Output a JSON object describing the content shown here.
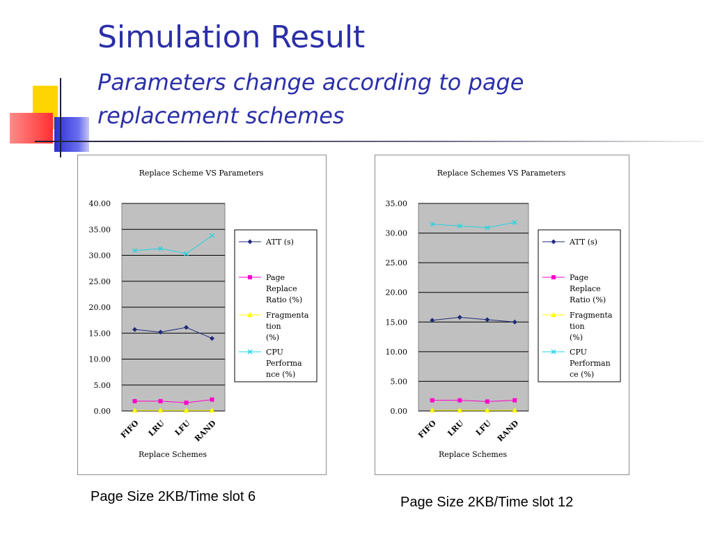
{
  "slide": {
    "title": "Simulation Result",
    "subtitle": "Parameters change according to page replacement schemes",
    "accent_colors": {
      "title": "#2b2fa8",
      "yellow": "#ffd400",
      "red": "#ff5a5a",
      "blue": "#2b2fd0"
    }
  },
  "captions": [
    "Page Size 2KB/Time slot 6",
    "Page Size 2KB/Time slot 12"
  ],
  "chart_data": [
    {
      "type": "line",
      "title": "Replace Scheme VS Parameters",
      "xlabel": "Replace Schemes",
      "ylabel": "",
      "categories": [
        "FIFO",
        "LRU",
        "LFU",
        "RAND"
      ],
      "ylim": [
        0,
        40
      ],
      "yticks": [
        "0.00",
        "5.00",
        "10.00",
        "15.00",
        "20.00",
        "25.00",
        "30.00",
        "35.00",
        "40.00"
      ],
      "grid": true,
      "legend_position": "right",
      "series": [
        {
          "name": "ATT (s)",
          "values": [
            15.7,
            15.2,
            16.1,
            14.0
          ],
          "color": "#1f2a7a",
          "marker": "diamond"
        },
        {
          "name": "Page Replace Ratio (%)",
          "values": [
            1.9,
            1.9,
            1.6,
            2.2
          ],
          "color": "#ff00cc",
          "marker": "square"
        },
        {
          "name": "Fragmentation (%)",
          "values": [
            0.1,
            0.1,
            0.1,
            0.1
          ],
          "color": "#ffff00",
          "marker": "triangle"
        },
        {
          "name": "CPU Performance (%)",
          "values": [
            30.9,
            31.3,
            30.3,
            33.8
          ],
          "color": "#22d3e0",
          "marker": "x"
        }
      ],
      "legend_lines": [
        [
          "ATT (s)"
        ],
        [
          "Page",
          "Replace",
          "Ratio (%)"
        ],
        [
          "Fragmenta",
          "tion",
          "(%)"
        ],
        [
          "CPU",
          "Performa",
          "nce  (%)"
        ]
      ]
    },
    {
      "type": "line",
      "title": "Replace Schemes VS Parameters",
      "xlabel": "Replace Schemes",
      "ylabel": "",
      "categories": [
        "FIFO",
        "LRU",
        "LFU",
        "RAND"
      ],
      "ylim": [
        0,
        35
      ],
      "yticks": [
        "0.00",
        "5.00",
        "10.00",
        "15.00",
        "20.00",
        "25.00",
        "30.00",
        "35.00"
      ],
      "grid": true,
      "legend_position": "right",
      "series": [
        {
          "name": "ATT (s)",
          "values": [
            15.3,
            15.8,
            15.4,
            15.0
          ],
          "color": "#1f2a7a",
          "marker": "diamond"
        },
        {
          "name": "Page Replace Ratio (%)",
          "values": [
            1.8,
            1.8,
            1.6,
            1.8
          ],
          "color": "#ff00cc",
          "marker": "square"
        },
        {
          "name": "Fragmentation (%)",
          "values": [
            0.1,
            0.1,
            0.1,
            0.1
          ],
          "color": "#ffff00",
          "marker": "triangle"
        },
        {
          "name": "CPU Performance (%)",
          "values": [
            31.5,
            31.2,
            30.9,
            31.8
          ],
          "color": "#22d3e0",
          "marker": "x"
        }
      ],
      "legend_lines": [
        [
          "ATT (s)"
        ],
        [
          "Page",
          "Replace",
          "Ratio (%)"
        ],
        [
          "Fragmenta",
          "tion",
          "(%)"
        ],
        [
          "CPU",
          "Performan",
          "ce  (%)"
        ]
      ]
    }
  ]
}
